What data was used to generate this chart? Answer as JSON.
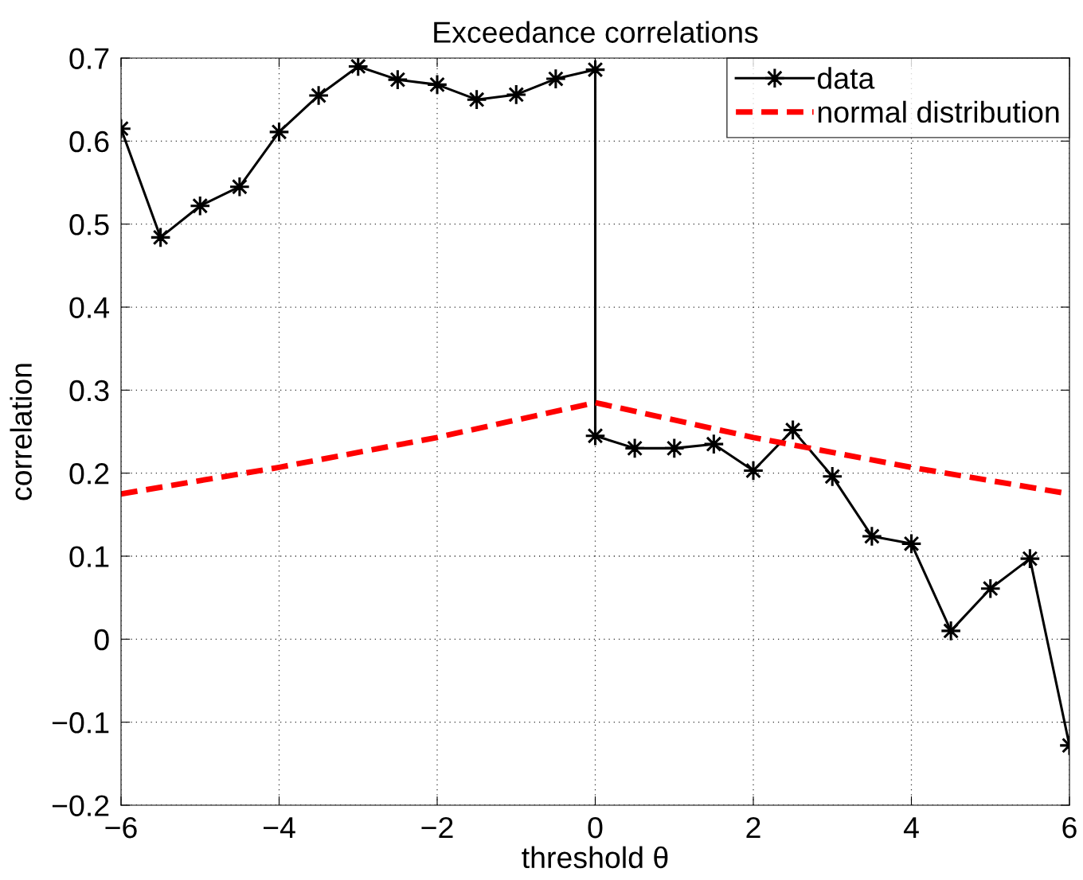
{
  "chart_data": {
    "type": "line",
    "title": "Exceedance correlations",
    "xlabel": "threshold θ",
    "ylabel": "correlation",
    "xlim": [
      -6,
      6
    ],
    "ylim": [
      -0.2,
      0.7
    ],
    "xticks": [
      {
        "value": -6,
        "label": "−6"
      },
      {
        "value": -4,
        "label": "−4"
      },
      {
        "value": -2,
        "label": "−2"
      },
      0,
      2,
      4,
      6
    ],
    "yticks": [
      {
        "value": -0.2,
        "label": "−0.2"
      },
      {
        "value": -0.1,
        "label": "−0.1"
      },
      0,
      0.1,
      0.2,
      0.3,
      0.4,
      0.5,
      0.6,
      0.7
    ],
    "grid": true,
    "legend": "top right",
    "series": [
      {
        "name": "data",
        "color": "#000000",
        "marker": "star",
        "line_style": "solid",
        "x": [
          -6,
          -5.5,
          -5,
          -4.5,
          -4,
          -3.5,
          -3,
          -2.5,
          -2,
          -1.5,
          -1,
          -0.5,
          0,
          0,
          0.5,
          1,
          1.5,
          2,
          2.5,
          3,
          3.5,
          4,
          4.5,
          5,
          5.5,
          6
        ],
        "values": [
          0.615,
          0.484,
          0.522,
          0.545,
          0.611,
          0.655,
          0.69,
          0.674,
          0.668,
          0.65,
          0.656,
          0.675,
          0.686,
          0.245,
          0.23,
          0.23,
          0.235,
          0.203,
          0.252,
          0.196,
          0.124,
          0.115,
          0.01,
          0.061,
          0.097,
          -0.128
        ]
      },
      {
        "name": "normal distribution",
        "color": "#ff0000",
        "marker": "none",
        "line_style": "dashed",
        "x": [
          -6,
          -4,
          -2,
          0,
          2,
          4,
          6
        ],
        "values": [
          0.175,
          0.207,
          0.243,
          0.285,
          0.243,
          0.207,
          0.175
        ]
      }
    ]
  }
}
